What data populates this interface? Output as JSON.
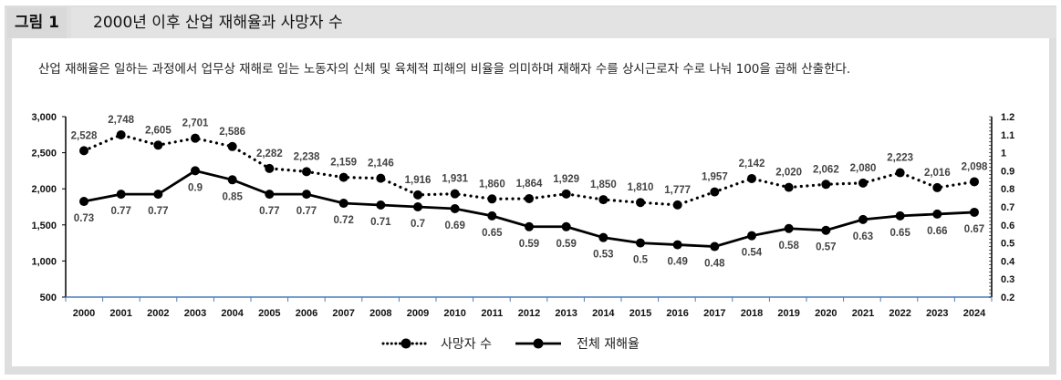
{
  "figure": {
    "label": "그림 1",
    "title": "2000년 이후 산업 재해율과 사망자 수",
    "description": "산업 재해율은 일하는 과정에서 업무상 재해로 입는 노동자의 신체 및 육체적 피해의 비율을 의미하며 재해자 수를 상시근로자 수로 나눠 100을 곱해 산출한다."
  },
  "chart_data": {
    "type": "line",
    "categories": [
      "2000",
      "2001",
      "2002",
      "2003",
      "2004",
      "2005",
      "2006",
      "2007",
      "2008",
      "2009",
      "2010",
      "2011",
      "2012",
      "2013",
      "2014",
      "2015",
      "2016",
      "2017",
      "2018",
      "2019",
      "2020",
      "2021",
      "2022",
      "2023",
      "2024"
    ],
    "series": [
      {
        "name": "사망자 수",
        "axis": "left",
        "style": "dotted",
        "color": "#000000",
        "values": [
          2528,
          2748,
          2605,
          2701,
          2586,
          2282,
          2238,
          2159,
          2146,
          1916,
          1931,
          1860,
          1864,
          1929,
          1850,
          1810,
          1777,
          1957,
          2142,
          2020,
          2062,
          2080,
          2223,
          2016,
          2098
        ],
        "labels": [
          "2,528",
          "2,748",
          "2,605",
          "2,701",
          "2,586",
          "2,282",
          "2,238",
          "2,159",
          "2,146",
          "1,916",
          "1,931",
          "1,860",
          "1,864",
          "1,929",
          "1,850",
          "1,810",
          "1,777",
          "1,957",
          "2,142",
          "2,020",
          "2,062",
          "2,080",
          "2,223",
          "2,016",
          "2,098"
        ]
      },
      {
        "name": "전체 재해율",
        "axis": "right",
        "style": "solid",
        "color": "#000000",
        "values": [
          0.73,
          0.77,
          0.77,
          0.9,
          0.85,
          0.77,
          0.77,
          0.72,
          0.71,
          0.7,
          0.69,
          0.65,
          0.59,
          0.59,
          0.53,
          0.5,
          0.49,
          0.48,
          0.54,
          0.58,
          0.57,
          0.63,
          0.65,
          0.66,
          0.67
        ],
        "labels": [
          "0.73",
          "0.77",
          "0.77",
          "0.9",
          "0.85",
          "0.77",
          "0.77",
          "0.72",
          "0.71",
          "0.7",
          "0.69",
          "0.65",
          "0.59",
          "0.59",
          "0.53",
          "0.5",
          "0.49",
          "0.48",
          "0.54",
          "0.58",
          "0.57",
          "0.63",
          "0.65",
          "0.66",
          "0.67"
        ]
      }
    ],
    "y_left": {
      "range": [
        500,
        3000
      ],
      "ticks": [
        "500",
        "1,000",
        "1,500",
        "2,000",
        "2,500",
        "3,000"
      ]
    },
    "y_right": {
      "range": [
        0.2,
        1.2
      ],
      "ticks": [
        "0.2",
        "0.3",
        "0.4",
        "0.5",
        "0.6",
        "0.7",
        "0.8",
        "0.9",
        "1",
        "1.1",
        "1.2"
      ]
    },
    "grid": false,
    "legend": "bottom-center",
    "axis_color": "#4a7ebb"
  }
}
